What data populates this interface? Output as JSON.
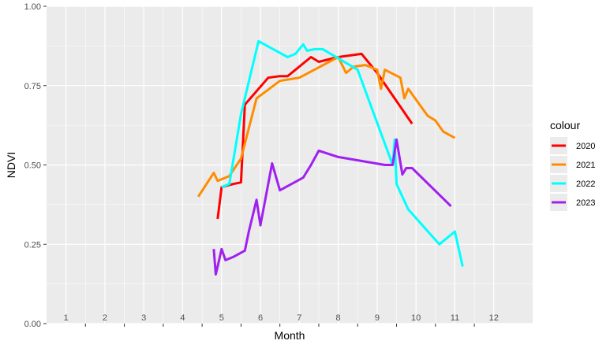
{
  "chart_data": {
    "type": "line",
    "title": "",
    "xlabel": "Month",
    "ylabel": "NDVI",
    "xlim": [
      0.5,
      13
    ],
    "ylim": [
      0,
      1
    ],
    "x_ticks": [
      1,
      2,
      3,
      4,
      5,
      6,
      7,
      8,
      9,
      10,
      11,
      12
    ],
    "y_ticks": [
      0,
      0.25,
      0.5,
      0.75,
      1
    ],
    "y_tick_labels": [
      "0.00",
      "0.25",
      "0.50",
      "0.75",
      "1.00"
    ],
    "grid": true,
    "legend": {
      "title": "colour",
      "position": "right"
    },
    "series": [
      {
        "name": "2020",
        "color": "#ff0000",
        "x": [
          4.9,
          5.0,
          5.3,
          5.5,
          5.6,
          6.2,
          6.5,
          6.7,
          7.3,
          7.5,
          8.0,
          8.6,
          9.0,
          9.9
        ],
        "y": [
          0.33,
          0.43,
          0.44,
          0.445,
          0.69,
          0.775,
          0.78,
          0.78,
          0.84,
          0.825,
          0.84,
          0.85,
          0.79,
          0.63
        ]
      },
      {
        "name": "2021",
        "color": "#ff8c00",
        "x": [
          4.4,
          4.8,
          4.9,
          5.2,
          5.5,
          5.9,
          6.5,
          7.0,
          8.0,
          8.2,
          8.4,
          8.7,
          9.0,
          9.1,
          9.2,
          9.6,
          9.7,
          9.8,
          10.3,
          10.5,
          10.7,
          11.0
        ],
        "y": [
          0.4,
          0.475,
          0.45,
          0.465,
          0.52,
          0.71,
          0.765,
          0.775,
          0.84,
          0.79,
          0.81,
          0.815,
          0.8,
          0.74,
          0.8,
          0.775,
          0.71,
          0.74,
          0.655,
          0.64,
          0.605,
          0.585
        ]
      },
      {
        "name": "2022",
        "color": "#00ffff",
        "x": [
          5.0,
          5.2,
          5.5,
          5.95,
          6.7,
          6.9,
          7.1,
          7.2,
          7.4,
          7.6,
          8.5,
          9.4,
          9.45,
          9.5,
          9.8,
          10.6,
          11.0,
          11.2
        ],
        "y": [
          0.43,
          0.44,
          0.66,
          0.89,
          0.84,
          0.85,
          0.88,
          0.86,
          0.865,
          0.865,
          0.8,
          0.5,
          0.58,
          0.44,
          0.36,
          0.25,
          0.29,
          0.18
        ]
      },
      {
        "name": "2023",
        "color": "#a020f0",
        "x": [
          4.8,
          4.85,
          4.9,
          5.0,
          5.1,
          5.3,
          5.6,
          5.7,
          5.9,
          6.0,
          6.3,
          6.5,
          7.1,
          7.3,
          7.5,
          8.0,
          9.2,
          9.4,
          9.5,
          9.65,
          9.75,
          9.9,
          10.9
        ],
        "y": [
          0.235,
          0.155,
          0.18,
          0.235,
          0.2,
          0.21,
          0.23,
          0.29,
          0.39,
          0.31,
          0.505,
          0.42,
          0.46,
          0.5,
          0.545,
          0.525,
          0.5,
          0.5,
          0.58,
          0.47,
          0.49,
          0.49,
          0.37
        ]
      }
    ]
  }
}
